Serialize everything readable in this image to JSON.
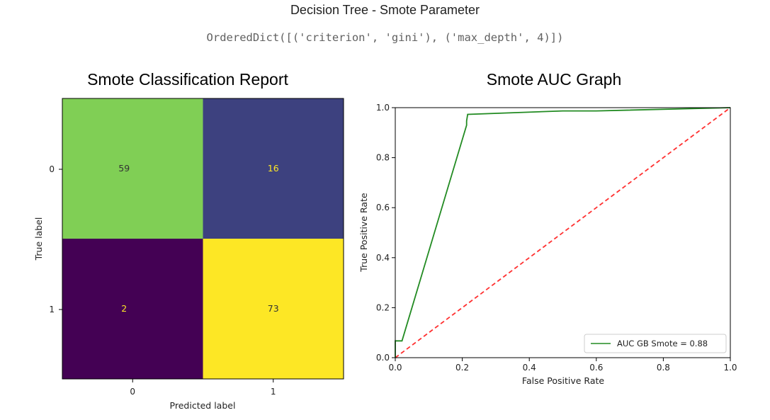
{
  "header": {
    "title": "Decision Tree - Smote Parameter",
    "params": "OrderedDict([('criterion', 'gini'), ('max_depth', 4)])"
  },
  "chart_data": [
    {
      "type": "heatmap",
      "title": "Smote Classification Report",
      "xlabel": "Predicted label",
      "ylabel": "True label",
      "x_categories": [
        "0",
        "1"
      ],
      "y_categories": [
        "0",
        "1"
      ],
      "values": [
        [
          59,
          16
        ],
        [
          2,
          73
        ]
      ],
      "colormap": "viridis",
      "colors": {
        "low": "#440154",
        "mid": "#3b4a86",
        "mid_high": "#7fd156",
        "high": "#fde725",
        "text_light": "#fde725",
        "text_dark": "#333333"
      }
    },
    {
      "type": "line",
      "title": "Smote AUC Graph",
      "xlabel": "False Positive Rate",
      "ylabel": "True Positive Rate",
      "xlim": [
        0.0,
        1.0
      ],
      "ylim": [
        0.0,
        1.0
      ],
      "x_ticks": [
        "0.0",
        "0.2",
        "0.4",
        "0.6",
        "0.8",
        "1.0"
      ],
      "y_ticks": [
        "0.0",
        "0.2",
        "0.4",
        "0.6",
        "0.8",
        "1.0"
      ],
      "legend": "lower-right",
      "series": [
        {
          "name": "AUC GB Smote = 0.88",
          "color": "#228b22",
          "style": "solid",
          "x": [
            0.0,
            0.0,
            0.02,
            0.213,
            0.213,
            0.216,
            0.5,
            0.6,
            1.0
          ],
          "y": [
            0.0,
            0.067,
            0.067,
            0.93,
            0.947,
            0.973,
            0.987,
            0.987,
            1.0
          ]
        },
        {
          "color": "#ff3030",
          "style": "dashed",
          "x": [
            0.0,
            1.0
          ],
          "y": [
            0.0,
            1.0
          ]
        }
      ]
    }
  ]
}
